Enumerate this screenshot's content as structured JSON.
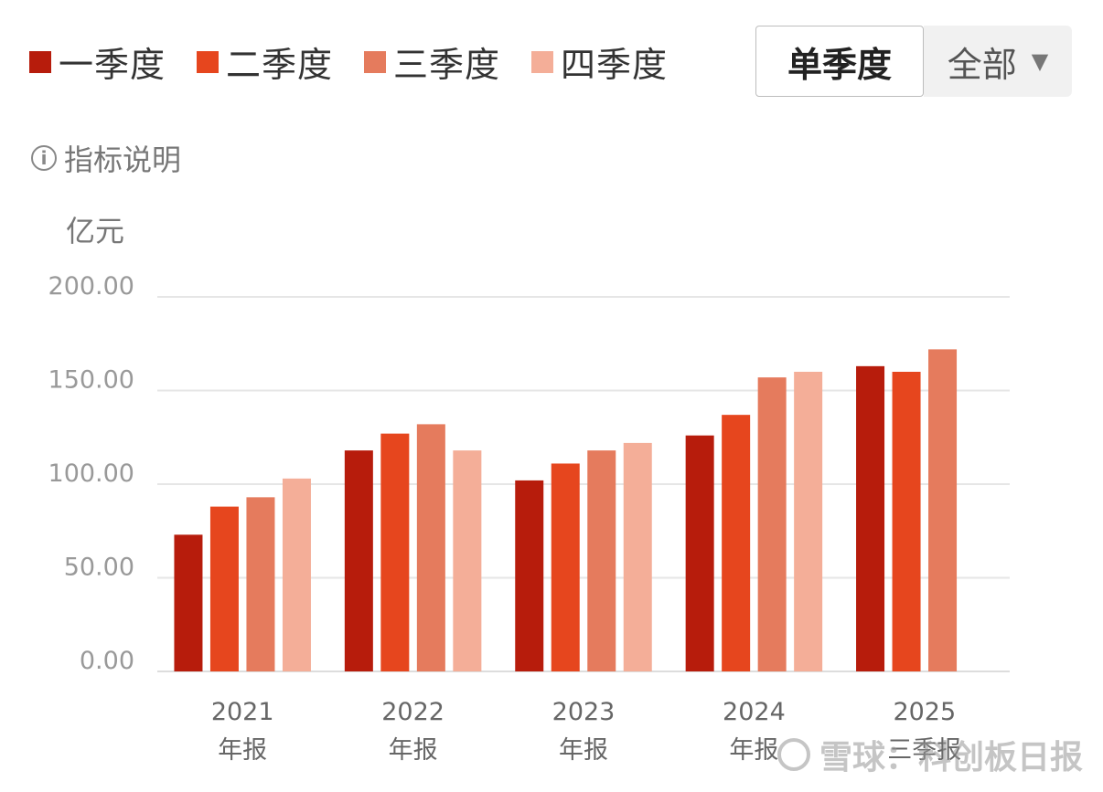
{
  "legend": [
    {
      "label": "一季度",
      "color": "#b71c0c"
    },
    {
      "label": "二季度",
      "color": "#e6461e"
    },
    {
      "label": "三季度",
      "color": "#e57b5d"
    },
    {
      "label": "四季度",
      "color": "#f4ae98"
    }
  ],
  "toggle": {
    "active": "单季度",
    "select": "全部",
    "caret": "▼"
  },
  "info": {
    "icon": "i",
    "label": "指标说明"
  },
  "watermark": {
    "text": "雪球：科创板日报"
  },
  "chart_data": {
    "type": "bar",
    "unit": "亿元",
    "categories": [
      [
        "2021",
        "年报"
      ],
      [
        "2022",
        "年报"
      ],
      [
        "2023",
        "年报"
      ],
      [
        "2024",
        "年报"
      ],
      [
        "2025",
        "三季报"
      ]
    ],
    "series": [
      {
        "name": "一季度",
        "color": "#b71c0c",
        "values": [
          73,
          118,
          102,
          126,
          163
        ]
      },
      {
        "name": "二季度",
        "color": "#e6461e",
        "values": [
          88,
          127,
          111,
          137,
          160
        ]
      },
      {
        "name": "三季度",
        "color": "#e57b5d",
        "values": [
          93,
          132,
          118,
          157,
          172
        ]
      },
      {
        "name": "四季度",
        "color": "#f4ae98",
        "values": [
          103,
          118,
          122,
          160,
          null
        ]
      }
    ],
    "yticks": [
      "0.00",
      "50.00",
      "100.00",
      "150.00",
      "200.00"
    ],
    "ylim": [
      0,
      200
    ],
    "grid": true,
    "legend_position": "top-left"
  }
}
